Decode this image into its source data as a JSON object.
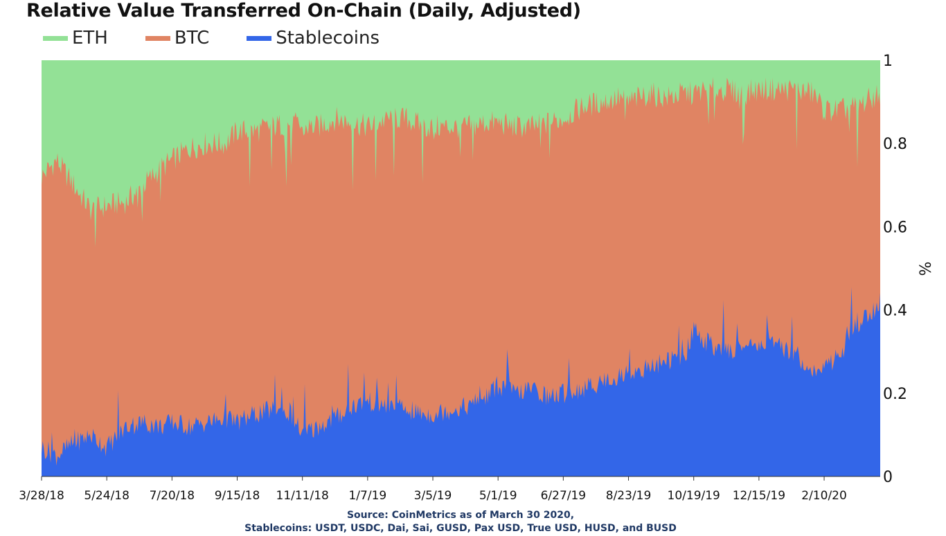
{
  "chart_data": {
    "type": "area",
    "stacked": true,
    "normalized": true,
    "title": "Relative Value Transferred On-Chain (Daily, Adjusted)",
    "ylabel": "%",
    "xlabel": "",
    "ylim": [
      0,
      1
    ],
    "y_axis_position": "right",
    "y_ticks": [
      "0",
      "0.2",
      "0.4",
      "0.6",
      "0.8",
      "1"
    ],
    "x_ticks": [
      "3/28/18",
      "5/24/18",
      "7/20/18",
      "9/15/18",
      "11/11/18",
      "1/7/19",
      "3/5/19",
      "5/1/19",
      "6/27/19",
      "8/23/19",
      "10/19/19",
      "12/15/19",
      "2/10/20"
    ],
    "x_start": "2018-03-28",
    "x_end": "2020-03-30",
    "legend_position": "top-left",
    "grid": false,
    "series": [
      {
        "name": "ETH",
        "color": "#93e196",
        "note": "top layer; fills from BTC cumulative boundary to 1"
      },
      {
        "name": "BTC",
        "color": "#e08463",
        "cumulative_boundary": {
          "dates": [
            "2018-03-28",
            "2018-04-10",
            "2018-04-25",
            "2018-05-10",
            "2018-05-24",
            "2018-06-10",
            "2018-06-25",
            "2018-07-10",
            "2018-07-20",
            "2018-08-05",
            "2018-08-20",
            "2018-09-05",
            "2018-09-15",
            "2018-10-01",
            "2018-10-15",
            "2018-11-01",
            "2018-11-11",
            "2018-11-25",
            "2018-12-10",
            "2018-12-25",
            "2019-01-07",
            "2019-01-25",
            "2019-02-10",
            "2019-02-25",
            "2019-03-05",
            "2019-03-20",
            "2019-04-05",
            "2019-04-20",
            "2019-05-01",
            "2019-05-15",
            "2019-06-01",
            "2019-06-15",
            "2019-06-27",
            "2019-07-15",
            "2019-08-01",
            "2019-08-15",
            "2019-08-23",
            "2019-09-10",
            "2019-09-25",
            "2019-10-10",
            "2019-10-19",
            "2019-11-01",
            "2019-11-15",
            "2019-12-01",
            "2019-12-15",
            "2020-01-01",
            "2020-01-15",
            "2020-02-01",
            "2020-02-10",
            "2020-02-25",
            "2020-03-10",
            "2020-03-30"
          ],
          "values": [
            0.72,
            0.76,
            0.7,
            0.64,
            0.65,
            0.66,
            0.7,
            0.74,
            0.76,
            0.79,
            0.8,
            0.8,
            0.83,
            0.83,
            0.84,
            0.85,
            0.84,
            0.84,
            0.86,
            0.85,
            0.84,
            0.86,
            0.86,
            0.84,
            0.84,
            0.84,
            0.84,
            0.85,
            0.85,
            0.84,
            0.84,
            0.85,
            0.86,
            0.89,
            0.9,
            0.91,
            0.9,
            0.92,
            0.91,
            0.92,
            0.92,
            0.93,
            0.93,
            0.92,
            0.93,
            0.93,
            0.93,
            0.92,
            0.88,
            0.88,
            0.89,
            0.92
          ]
        }
      },
      {
        "name": "Stablecoins",
        "color": "#3366e8",
        "values_dates": [
          "2018-03-28",
          "2018-04-10",
          "2018-04-25",
          "2018-05-10",
          "2018-05-24",
          "2018-06-10",
          "2018-06-25",
          "2018-07-10",
          "2018-07-20",
          "2018-08-05",
          "2018-08-20",
          "2018-09-05",
          "2018-09-15",
          "2018-10-01",
          "2018-10-15",
          "2018-11-01",
          "2018-11-11",
          "2018-11-25",
          "2018-12-10",
          "2018-12-25",
          "2019-01-07",
          "2019-01-25",
          "2019-02-10",
          "2019-02-25",
          "2019-03-05",
          "2019-03-20",
          "2019-04-05",
          "2019-04-20",
          "2019-05-01",
          "2019-05-15",
          "2019-06-01",
          "2019-06-15",
          "2019-06-27",
          "2019-07-15",
          "2019-08-01",
          "2019-08-15",
          "2019-08-23",
          "2019-09-10",
          "2019-09-25",
          "2019-10-10",
          "2019-10-19",
          "2019-11-01",
          "2019-11-15",
          "2019-12-01",
          "2019-12-15",
          "2020-01-01",
          "2020-01-15",
          "2020-02-01",
          "2020-02-10",
          "2020-02-25",
          "2020-03-10",
          "2020-03-30"
        ],
        "values": [
          0.07,
          0.05,
          0.08,
          0.1,
          0.07,
          0.12,
          0.13,
          0.12,
          0.13,
          0.12,
          0.13,
          0.14,
          0.13,
          0.15,
          0.16,
          0.15,
          0.1,
          0.12,
          0.14,
          0.17,
          0.18,
          0.17,
          0.16,
          0.15,
          0.15,
          0.16,
          0.17,
          0.19,
          0.22,
          0.2,
          0.21,
          0.19,
          0.2,
          0.21,
          0.23,
          0.24,
          0.25,
          0.26,
          0.28,
          0.28,
          0.35,
          0.32,
          0.3,
          0.31,
          0.32,
          0.31,
          0.3,
          0.25,
          0.26,
          0.3,
          0.36,
          0.42
        ]
      }
    ]
  },
  "source": {
    "line1": "Source: CoinMetrics as of March 30 2020,",
    "line2": "Stablecoins: USDT, USDC, Dai, Sai, GUSD, Pax USD, True USD, HUSD, and BUSD"
  }
}
